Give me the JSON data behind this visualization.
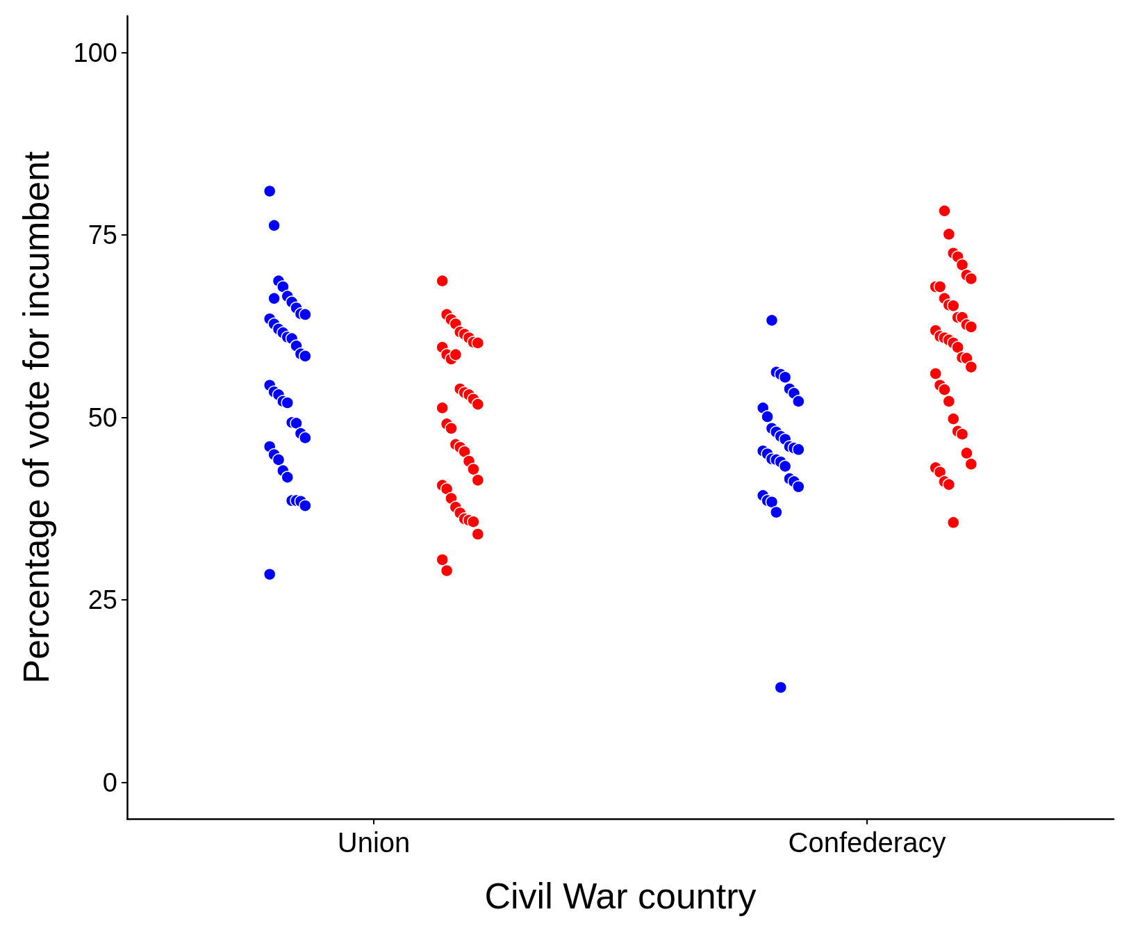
{
  "chart_data": {
    "type": "scatter",
    "xlabel": "Civil War country",
    "ylabel": "Percentage of vote for incumbent",
    "categories": [
      "Union",
      "Confederacy"
    ],
    "ylim": [
      -5,
      105
    ],
    "yticks": [
      0,
      25,
      50,
      75,
      100
    ],
    "grid": false,
    "marker": "circle",
    "series": [
      {
        "color": "#0000ff",
        "x": [
          "Union",
          "Union",
          "Union",
          "Union",
          "Union",
          "Union",
          "Union",
          "Union",
          "Union",
          "Union",
          "Union",
          "Union",
          "Union",
          "Union",
          "Union",
          "Union",
          "Union",
          "Union",
          "Union",
          "Union",
          "Union",
          "Union",
          "Union",
          "Union",
          "Union",
          "Union",
          "Union",
          "Union",
          "Union",
          "Union",
          "Union",
          "Union",
          "Union",
          "Union",
          "Union",
          "Union",
          "Union",
          "Union",
          "Confederacy",
          "Confederacy",
          "Confederacy",
          "Confederacy",
          "Confederacy",
          "Confederacy",
          "Confederacy",
          "Confederacy",
          "Confederacy",
          "Confederacy",
          "Confederacy",
          "Confederacy",
          "Confederacy",
          "Confederacy",
          "Confederacy",
          "Confederacy",
          "Confederacy",
          "Confederacy",
          "Confederacy",
          "Confederacy",
          "Confederacy",
          "Confederacy",
          "Confederacy",
          "Confederacy",
          "Confederacy",
          "Confederacy",
          "Confederacy",
          "Confederacy",
          "Confederacy",
          "Confederacy"
        ],
        "values": [
          81.0,
          76.3,
          68.7,
          67.9,
          66.6,
          65.8,
          65.0,
          64.2,
          64.1,
          63.5,
          62.8,
          62.1,
          61.6,
          61.0,
          60.8,
          59.8,
          58.7,
          58.4,
          54.4,
          53.5,
          53.1,
          52.2,
          52.0,
          49.3,
          49.2,
          47.8,
          47.2,
          46.0,
          44.9,
          44.2,
          42.7,
          41.8,
          38.6,
          38.6,
          38.5,
          37.9,
          28.5,
          66.3,
          63.3,
          56.2,
          55.9,
          55.5,
          53.9,
          53.3,
          52.2,
          51.3,
          50.1,
          48.5,
          48.0,
          47.4,
          47.0,
          46.0,
          45.8,
          45.6,
          45.4,
          45.0,
          44.3,
          44.2,
          43.9,
          43.3,
          41.6,
          41.2,
          40.5,
          39.3,
          38.6,
          38.4,
          37.0,
          13.0
        ]
      },
      {
        "color": "#ff0000",
        "x": [
          "Union",
          "Union",
          "Union",
          "Union",
          "Union",
          "Union",
          "Union",
          "Union",
          "Union",
          "Union",
          "Union",
          "Union",
          "Union",
          "Union",
          "Union",
          "Union",
          "Union",
          "Union",
          "Union",
          "Union",
          "Union",
          "Union",
          "Union",
          "Union",
          "Union",
          "Union",
          "Union",
          "Union",
          "Union",
          "Union",
          "Union",
          "Union",
          "Union",
          "Union",
          "Union",
          "Union",
          "Union",
          "Union",
          "Confederacy",
          "Confederacy",
          "Confederacy",
          "Confederacy",
          "Confederacy",
          "Confederacy",
          "Confederacy",
          "Confederacy",
          "Confederacy",
          "Confederacy",
          "Confederacy",
          "Confederacy",
          "Confederacy",
          "Confederacy",
          "Confederacy",
          "Confederacy",
          "Confederacy",
          "Confederacy",
          "Confederacy",
          "Confederacy",
          "Confederacy",
          "Confederacy",
          "Confederacy",
          "Confederacy",
          "Confederacy",
          "Confederacy",
          "Confederacy",
          "Confederacy",
          "Confederacy",
          "Confederacy",
          "Confederacy",
          "Confederacy",
          "Confederacy",
          "Confederacy",
          "Confederacy",
          "Confederacy",
          "Confederacy",
          "Confederacy",
          "Confederacy"
        ],
        "values": [
          68.7,
          64.1,
          63.4,
          62.8,
          61.7,
          61.4,
          60.9,
          60.3,
          60.2,
          59.6,
          58.6,
          58.0,
          58.6,
          53.9,
          53.4,
          53.1,
          52.5,
          51.8,
          51.3,
          49.1,
          48.5,
          46.3,
          45.9,
          45.3,
          44.0,
          42.9,
          41.4,
          40.7,
          40.2,
          38.9,
          37.7,
          36.9,
          36.1,
          35.9,
          35.7,
          34.0,
          30.5,
          29.0,
          78.3,
          75.1,
          72.5,
          72.0,
          70.9,
          69.5,
          69.0,
          67.9,
          67.9,
          66.3,
          65.4,
          65.3,
          63.7,
          63.7,
          62.7,
          62.4,
          61.9,
          61.1,
          60.9,
          60.6,
          60.2,
          59.6,
          58.2,
          58.1,
          56.9,
          56.0,
          54.4,
          53.8,
          52.2,
          49.8,
          48.1,
          47.7,
          45.1,
          43.6,
          43.1,
          42.5,
          41.2,
          40.8,
          35.6
        ]
      }
    ]
  }
}
